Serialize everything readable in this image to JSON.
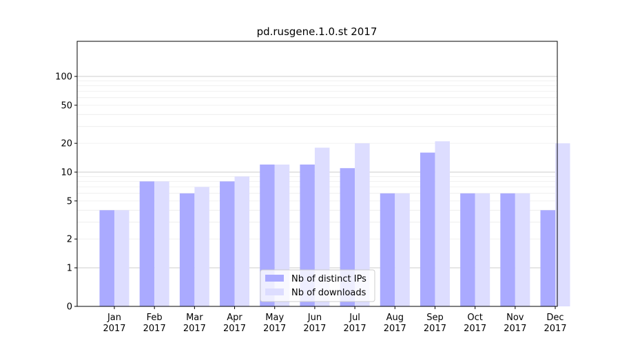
{
  "chart_data": {
    "type": "bar",
    "title": "pd.rusgene.1.0.st 2017",
    "xlabel": "",
    "ylabel": "",
    "y_scale": "symlog",
    "y_ticks": [
      0,
      1,
      2,
      5,
      10,
      20,
      50,
      100
    ],
    "y_tick_labels": [
      "0",
      "1",
      "2",
      "5",
      "10",
      "20",
      "50",
      "100"
    ],
    "categories": [
      "Jan\n2017",
      "Feb\n2017",
      "Mar\n2017",
      "Apr\n2017",
      "May\n2017",
      "Jun\n2017",
      "Jul\n2017",
      "Aug\n2017",
      "Sep\n2017",
      "Oct\n2017",
      "Nov\n2017",
      "Dec\n2017"
    ],
    "series": [
      {
        "name": "Nb of distinct IPs",
        "values": [
          4,
          8,
          6,
          8,
          12,
          12,
          11,
          6,
          16,
          6,
          6,
          4
        ],
        "color": "#aaaaff"
      },
      {
        "name": "Nb of downloads",
        "values": [
          4,
          8,
          7,
          9,
          12,
          18,
          20,
          6,
          21,
          6,
          6,
          20
        ],
        "color": "#ddddff"
      }
    ],
    "legend_position": "bottom-center",
    "grid": "horizontal-minor"
  }
}
